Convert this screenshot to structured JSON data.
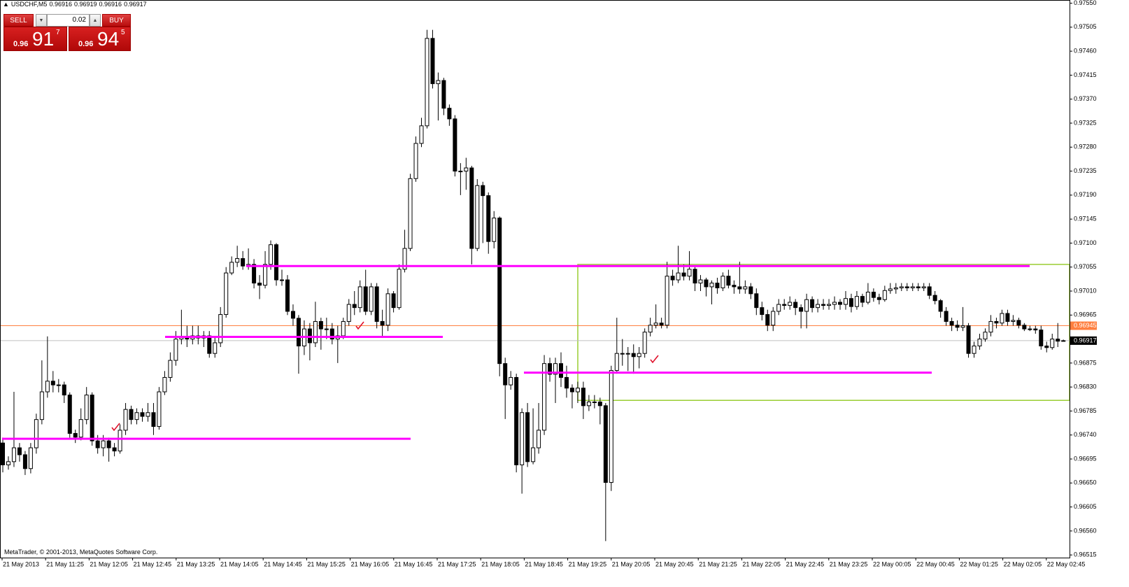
{
  "symbol": "USDCHF,M5",
  "copyright": "MetaTrader, © 2001-2013, MetaQuotes Software Corp.",
  "trade_panel": {
    "sell_label": "SELL",
    "buy_label": "BUY",
    "lot": "0.02",
    "sell_price": {
      "prefix": "0.96",
      "big": "91",
      "point": "7"
    },
    "buy_price": {
      "prefix": "0.96",
      "big": "94",
      "point": "5"
    }
  },
  "chart_data": {
    "type": "candlestick",
    "bull_color": "#ffffff",
    "bear_color": "#000000",
    "ylim": [
      0.9651,
      0.97556
    ],
    "yticks": [
      {
        "value": 0.9755,
        "label": "0.97550"
      },
      0.97505,
      {
        "value": 0.9746,
        "label": "0.97460"
      },
      0.97415,
      {
        "value": 0.9737,
        "label": "0.97370"
      },
      0.97325,
      {
        "value": 0.9728,
        "label": "0.97280"
      },
      0.97235,
      {
        "value": 0.9719,
        "label": "0.97190"
      },
      0.97145,
      {
        "value": 0.971,
        "label": "0.97100"
      },
      0.97055,
      {
        "value": 0.9701,
        "label": "0.97010"
      },
      0.96965,
      0.96875,
      {
        "value": 0.9683,
        "label": "0.96830"
      },
      0.96785,
      {
        "value": 0.9674,
        "label": "0.96740"
      },
      0.96695,
      {
        "value": 0.9665,
        "label": "0.96650"
      },
      0.96605,
      {
        "value": 0.9656,
        "label": "0.96560"
      },
      0.96515
    ],
    "xticks": [
      "21 May 2013",
      "21 May 11:25",
      "21 May 12:05",
      "21 May 12:45",
      "21 May 13:25",
      "21 May 14:05",
      "21 May 14:45",
      "21 May 15:25",
      "21 May 16:05",
      "21 May 16:45",
      "21 May 17:25",
      "21 May 18:05",
      "21 May 18:45",
      "21 May 19:25",
      "21 May 20:05",
      "21 May 20:45",
      "21 May 21:25",
      "21 May 22:05",
      "21 May 22:45",
      "21 May 23:25",
      "22 May 00:05",
      "22 May 00:45",
      "22 May 01:25",
      "22 May 02:05",
      "22 May 02:45"
    ],
    "open": [
      0.96725,
      0.96684,
      0.9669,
      0.96716,
      0.96703,
      0.96677,
      0.96716,
      0.96769,
      0.96821,
      0.96841,
      0.96834,
      0.96834,
      0.96815,
      0.96743,
      0.96736,
      0.96769,
      0.96815,
      0.96729,
      0.96716,
      0.96729,
      0.96716,
      0.9671,
      0.96749,
      0.96788,
      0.96769,
      0.96782,
      0.96775,
      0.96782,
      0.96756,
      0.96821,
      0.96848,
      0.9688,
      0.9692,
      0.96924,
      0.9692,
      0.96926,
      0.96922,
      0.96926,
      0.96893,
      0.96913,
      0.96966,
      0.97044,
      0.97064,
      0.97071,
      0.97057,
      0.9706,
      0.97025,
      0.97021,
      0.9706,
      0.97097,
      0.97031,
      0.97031,
      0.96972,
      0.96959,
      0.96907,
      0.96939,
      0.96913,
      0.96953,
      0.96939,
      0.96939,
      0.9692,
      0.96926,
      0.96953,
      0.96985,
      0.96979,
      0.97018,
      0.96972,
      0.97018,
      0.96953,
      0.96946,
      0.97005,
      0.96979,
      0.97051,
      0.9709,
      0.97221,
      0.97287,
      0.9732,
      0.97484,
      0.97399,
      0.97405,
      0.97353,
      0.97333,
      0.97235,
      0.97235,
      0.97241,
      0.9709,
      0.97208,
      0.97189,
      0.97103,
      0.97147,
      0.96874,
      0.96834,
      0.96848,
      0.96684,
      0.96782,
      0.9669,
      0.96716,
      0.96749,
      0.96874,
      0.96854,
      0.96874,
      0.96848,
      0.96828,
      0.96821,
      0.96828,
      0.96795,
      0.96802,
      0.96802,
      0.96795,
      0.96651,
      0.96861,
      0.96893,
      0.96893,
      0.96893,
      0.96887,
      0.96893,
      0.96933,
      0.96946,
      0.9695,
      0.96946,
      0.97038,
      0.97031,
      0.97044,
      0.97038,
      0.97051,
      0.97025,
      0.97031,
      0.97018,
      0.97025,
      0.97016,
      0.97038,
      0.97021,
      0.97018,
      0.97014,
      0.97018,
      0.97005,
      0.96979,
      0.96966,
      0.96946,
      0.96972,
      0.96985,
      0.96983,
      0.96989,
      0.96979,
      0.96972,
      0.96994,
      0.96979,
      0.96985,
      0.96983,
      0.96985,
      0.96989,
      0.96985,
      0.96996,
      0.96981,
      0.97,
      0.96989,
      0.97008,
      0.96998,
      0.96994,
      0.97011,
      0.97014,
      0.97016,
      0.97018,
      0.97016,
      0.97018,
      0.97016,
      0.97018,
      0.97002,
      0.96992,
      0.96972,
      0.96953,
      0.96946,
      0.96942,
      0.96945,
      0.96893,
      0.96907,
      0.9692,
      0.96933,
      0.96953,
      0.9695,
      0.96968,
      0.96953,
      0.96955,
      0.96946,
      0.96939,
      0.96939,
      0.96937,
      0.96907,
      0.96904,
      0.9692,
      0.96916
    ],
    "high": [
      0.96735,
      0.967,
      0.96821,
      0.96725,
      0.9671,
      0.96725,
      0.9678,
      0.9688,
      0.96925,
      0.9686,
      0.96845,
      0.9684,
      0.9682,
      0.9675,
      0.9679,
      0.9683,
      0.9682,
      0.9674,
      0.9674,
      0.96735,
      0.96725,
      0.9676,
      0.968,
      0.96795,
      0.9679,
      0.9679,
      0.968,
      0.968,
      0.9683,
      0.9686,
      0.96895,
      0.96935,
      0.96975,
      0.96945,
      0.96945,
      0.96945,
      0.96935,
      0.96935,
      0.96925,
      0.9698,
      0.97055,
      0.97075,
      0.97095,
      0.97085,
      0.9709,
      0.9707,
      0.9704,
      0.97085,
      0.97105,
      0.971,
      0.9705,
      0.9704,
      0.96985,
      0.96965,
      0.96955,
      0.9695,
      0.9699,
      0.9696,
      0.9696,
      0.9695,
      0.96945,
      0.9696,
      0.96995,
      0.9701,
      0.9703,
      0.9705,
      0.97025,
      0.97025,
      0.96975,
      0.97015,
      0.9701,
      0.9706,
      0.97125,
      0.9723,
      0.973,
      0.97335,
      0.975,
      0.975,
      0.9742,
      0.9741,
      0.9736,
      0.9734,
      0.9725,
      0.9726,
      0.97245,
      0.9722,
      0.97215,
      0.97195,
      0.9716,
      0.9715,
      0.96885,
      0.9686,
      0.96855,
      0.9679,
      0.968,
      0.9679,
      0.968,
      0.9689,
      0.96885,
      0.96885,
      0.96895,
      0.9687,
      0.96835,
      0.9684,
      0.9684,
      0.96815,
      0.96815,
      0.9681,
      0.968,
      0.9687,
      0.9696,
      0.9692,
      0.96905,
      0.9691,
      0.96905,
      0.9694,
      0.9696,
      0.96985,
      0.9696,
      0.97065,
      0.9705,
      0.97095,
      0.9706,
      0.97085,
      0.97055,
      0.9704,
      0.97035,
      0.9703,
      0.97035,
      0.97045,
      0.9705,
      0.9703,
      0.97065,
      0.9703,
      0.97025,
      0.97015,
      0.9699,
      0.96975,
      0.9698,
      0.96995,
      0.96995,
      0.97,
      0.96995,
      0.96985,
      0.97005,
      0.97,
      0.96995,
      0.96995,
      0.96995,
      0.97,
      0.96995,
      0.9701,
      0.97005,
      0.9701,
      0.97005,
      0.97025,
      0.97015,
      0.97005,
      0.9702,
      0.97025,
      0.97025,
      0.97025,
      0.97025,
      0.97025,
      0.97025,
      0.97025,
      0.97025,
      0.9701,
      0.96995,
      0.9698,
      0.9696,
      0.96955,
      0.9698,
      0.9695,
      0.96915,
      0.9693,
      0.9694,
      0.96965,
      0.9696,
      0.96975,
      0.96975,
      0.96965,
      0.9696,
      0.9695,
      0.96945,
      0.96945,
      0.96945,
      0.96915,
      0.9693,
      0.9695,
      0.96919
    ],
    "low": [
      0.9667,
      0.96675,
      0.9668,
      0.9669,
      0.96665,
      0.96668,
      0.96705,
      0.9676,
      0.9681,
      0.9682,
      0.9682,
      0.968,
      0.96735,
      0.96725,
      0.9673,
      0.9676,
      0.9672,
      0.96705,
      0.967,
      0.9669,
      0.967,
      0.96705,
      0.9674,
      0.9676,
      0.9676,
      0.96765,
      0.96765,
      0.9674,
      0.9675,
      0.96815,
      0.9684,
      0.9687,
      0.9691,
      0.96905,
      0.9691,
      0.9691,
      0.96905,
      0.96885,
      0.96885,
      0.96905,
      0.9696,
      0.9704,
      0.97055,
      0.9705,
      0.9705,
      0.97015,
      0.96995,
      0.97015,
      0.9705,
      0.9702,
      0.9702,
      0.96965,
      0.96945,
      0.96855,
      0.9689,
      0.9688,
      0.96905,
      0.969,
      0.9692,
      0.9691,
      0.96875,
      0.9692,
      0.96945,
      0.96965,
      0.9697,
      0.96965,
      0.96965,
      0.9694,
      0.96925,
      0.96935,
      0.9697,
      0.96975,
      0.97045,
      0.97085,
      0.97215,
      0.9728,
      0.97315,
      0.9739,
      0.9733,
      0.9734,
      0.9732,
      0.97225,
      0.9719,
      0.972,
      0.9706,
      0.97085,
      0.971,
      0.9708,
      0.9709,
      0.9685,
      0.9677,
      0.96825,
      0.9667,
      0.9663,
      0.9668,
      0.96685,
      0.96705,
      0.9674,
      0.9684,
      0.968,
      0.9683,
      0.9681,
      0.9679,
      0.968,
      0.9677,
      0.96785,
      0.9679,
      0.9676,
      0.96541,
      0.96635,
      0.96855,
      0.9687,
      0.9686,
      0.96855,
      0.96865,
      0.96885,
      0.96925,
      0.9694,
      0.9694,
      0.9694,
      0.9702,
      0.97025,
      0.9703,
      0.9703,
      0.9701,
      0.9701,
      0.97,
      0.96985,
      0.97005,
      0.9701,
      0.97015,
      0.97005,
      0.97005,
      0.97005,
      0.96995,
      0.96965,
      0.96955,
      0.96935,
      0.96935,
      0.96965,
      0.96975,
      0.96975,
      0.96965,
      0.9694,
      0.9694,
      0.9697,
      0.9697,
      0.96975,
      0.96975,
      0.96975,
      0.96975,
      0.96975,
      0.9697,
      0.96975,
      0.9698,
      0.96985,
      0.9699,
      0.96985,
      0.9699,
      0.97005,
      0.97005,
      0.9701,
      0.9701,
      0.9701,
      0.9701,
      0.9701,
      0.96995,
      0.96985,
      0.9696,
      0.96945,
      0.96935,
      0.96935,
      0.96935,
      0.96885,
      0.96885,
      0.969,
      0.96915,
      0.96925,
      0.9694,
      0.96945,
      0.96945,
      0.96945,
      0.9694,
      0.96935,
      0.96935,
      0.9693,
      0.969,
      0.96895,
      0.969,
      0.96905,
      0.96916
    ],
    "close": [
      0.96684,
      0.9669,
      0.96716,
      0.96703,
      0.96677,
      0.96716,
      0.96769,
      0.96821,
      0.96841,
      0.96834,
      0.96834,
      0.96815,
      0.96743,
      0.96736,
      0.96769,
      0.96815,
      0.96729,
      0.96716,
      0.96729,
      0.96716,
      0.9671,
      0.96749,
      0.96788,
      0.96769,
      0.96782,
      0.96775,
      0.96782,
      0.96756,
      0.96821,
      0.96848,
      0.9688,
      0.9692,
      0.96924,
      0.9692,
      0.96926,
      0.96922,
      0.96926,
      0.96893,
      0.96913,
      0.96966,
      0.97044,
      0.97064,
      0.97071,
      0.97057,
      0.9706,
      0.97025,
      0.97021,
      0.9706,
      0.97097,
      0.97031,
      0.97031,
      0.96972,
      0.96959,
      0.96907,
      0.96939,
      0.96913,
      0.96953,
      0.96939,
      0.96939,
      0.9692,
      0.96926,
      0.96953,
      0.96985,
      0.96979,
      0.97018,
      0.96972,
      0.97018,
      0.96953,
      0.96946,
      0.97005,
      0.96979,
      0.97051,
      0.9709,
      0.97221,
      0.97287,
      0.9732,
      0.97484,
      0.97399,
      0.97405,
      0.97353,
      0.97333,
      0.97235,
      0.97235,
      0.97241,
      0.9709,
      0.97208,
      0.97189,
      0.97103,
      0.97147,
      0.96874,
      0.96834,
      0.96848,
      0.96684,
      0.96782,
      0.9669,
      0.96716,
      0.96749,
      0.96874,
      0.96854,
      0.96874,
      0.96848,
      0.96828,
      0.96821,
      0.96828,
      0.96795,
      0.96802,
      0.96802,
      0.96795,
      0.96651,
      0.96861,
      0.96893,
      0.96893,
      0.96893,
      0.96887,
      0.96893,
      0.96933,
      0.96946,
      0.9695,
      0.96946,
      0.97038,
      0.97031,
      0.97044,
      0.97038,
      0.97051,
      0.97025,
      0.97031,
      0.97018,
      0.97025,
      0.97016,
      0.97038,
      0.97021,
      0.97018,
      0.97014,
      0.97018,
      0.97005,
      0.96979,
      0.96966,
      0.96946,
      0.96972,
      0.96985,
      0.96983,
      0.96989,
      0.96979,
      0.96972,
      0.96994,
      0.96979,
      0.96985,
      0.96983,
      0.96985,
      0.96989,
      0.96985,
      0.96996,
      0.96981,
      0.97,
      0.96989,
      0.97008,
      0.96998,
      0.96994,
      0.97011,
      0.97014,
      0.97016,
      0.97018,
      0.97016,
      0.97018,
      0.97016,
      0.97018,
      0.97002,
      0.96992,
      0.96972,
      0.96953,
      0.96946,
      0.96942,
      0.96945,
      0.96893,
      0.96907,
      0.9692,
      0.96933,
      0.96953,
      0.9695,
      0.96968,
      0.96953,
      0.96955,
      0.96946,
      0.96939,
      0.96939,
      0.96937,
      0.96907,
      0.96904,
      0.9692,
      0.96916,
      0.96917
    ],
    "levels": [
      {
        "value": 0.96733,
        "color": "#ff00ff"
      },
      {
        "value": 0.96924,
        "color": "#ff00ff"
      },
      {
        "value": 0.97057,
        "color": "#ff00ff"
      },
      {
        "value": 0.96857,
        "color": "#ff00ff"
      }
    ],
    "box": {
      "top": 0.9706,
      "bottom": 0.96805,
      "color": "#9acd32"
    },
    "ask_line": {
      "value": 0.96945,
      "color": "#ff7f3f"
    },
    "bid_line": {
      "value": 0.96917,
      "color": "#c0c0c0"
    }
  }
}
